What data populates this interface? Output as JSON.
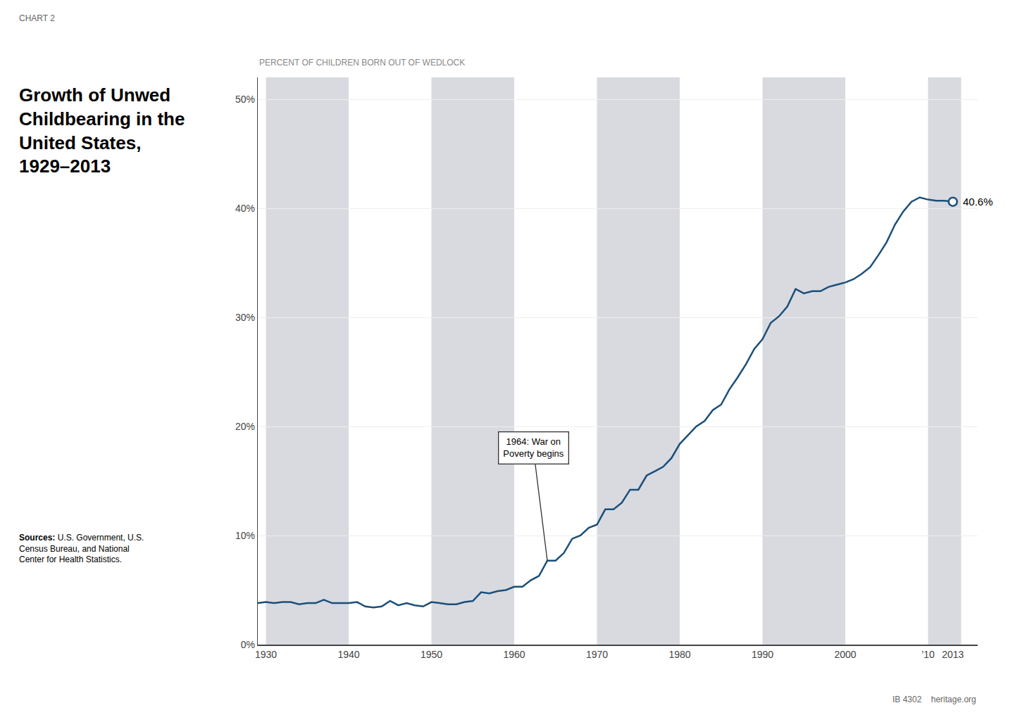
{
  "chart_data": {
    "type": "line",
    "chart_label": "CHART 2",
    "title": "Growth of Unwed\nChildbearing in the\nUnited States,\n1929–2013",
    "ylabel": "PERCENT OF CHILDREN BORN OUT OF WEDLOCK",
    "x": [
      1929,
      1930,
      1931,
      1932,
      1933,
      1934,
      1935,
      1936,
      1937,
      1938,
      1939,
      1940,
      1941,
      1942,
      1943,
      1944,
      1945,
      1946,
      1947,
      1948,
      1949,
      1950,
      1951,
      1952,
      1953,
      1954,
      1955,
      1956,
      1957,
      1958,
      1959,
      1960,
      1961,
      1962,
      1963,
      1964,
      1965,
      1966,
      1967,
      1968,
      1969,
      1970,
      1971,
      1972,
      1973,
      1974,
      1975,
      1976,
      1977,
      1978,
      1979,
      1980,
      1981,
      1982,
      1983,
      1984,
      1985,
      1986,
      1987,
      1988,
      1989,
      1990,
      1991,
      1992,
      1993,
      1994,
      1995,
      1996,
      1997,
      1998,
      1999,
      2000,
      2001,
      2002,
      2003,
      2004,
      2005,
      2006,
      2007,
      2008,
      2009,
      2010,
      2011,
      2012,
      2013
    ],
    "values": [
      3.8,
      3.9,
      3.8,
      3.9,
      3.9,
      3.7,
      3.8,
      3.8,
      4.1,
      3.8,
      3.8,
      3.8,
      3.9,
      3.5,
      3.4,
      3.5,
      4.0,
      3.6,
      3.8,
      3.6,
      3.5,
      3.9,
      3.8,
      3.7,
      3.7,
      3.9,
      4.0,
      4.8,
      4.7,
      4.9,
      5.0,
      5.3,
      5.3,
      5.9,
      6.3,
      7.7,
      7.7,
      8.4,
      9.7,
      10.0,
      10.7,
      11.0,
      12.4,
      12.4,
      13.0,
      14.2,
      14.2,
      15.5,
      15.9,
      16.3,
      17.1,
      18.4,
      19.2,
      20.0,
      20.5,
      21.5,
      22.0,
      23.4,
      24.5,
      25.7,
      27.1,
      28.0,
      29.5,
      30.1,
      31.0,
      32.6,
      32.2,
      32.4,
      32.4,
      32.8,
      33.0,
      33.2,
      33.5,
      34.0,
      34.6,
      35.7,
      36.9,
      38.5,
      39.7,
      40.6,
      41.0,
      40.8,
      40.7,
      40.7,
      40.6
    ],
    "color": "#1a4f7a",
    "xlim": [
      1929,
      2016
    ],
    "xticks": [
      1930,
      1940,
      1950,
      1960,
      1970,
      1980,
      1990,
      2000,
      {
        "value": 2010,
        "label": "’10"
      },
      2013
    ],
    "ylim": [
      0,
      52
    ],
    "yticks": [
      {
        "value": 0,
        "label": "0%"
      },
      {
        "value": 10,
        "label": "10%"
      },
      {
        "value": 20,
        "label": "20%"
      },
      {
        "value": 30,
        "label": "30%"
      },
      {
        "value": 40,
        "label": "40%"
      },
      {
        "value": 50,
        "label": "50%"
      }
    ],
    "grid": "y",
    "annotations": [
      {
        "text": "1964: War on\nPoverty begins",
        "x": 1964,
        "y": 7.7
      }
    ],
    "endpoint": {
      "x": 2013,
      "y": 40.6,
      "label": "40.6%"
    },
    "shaded_bands": [
      [
        1930,
        1940
      ],
      [
        1950,
        1960
      ],
      [
        1970,
        1980
      ],
      [
        1990,
        2000
      ],
      [
        2010,
        2014
      ]
    ],
    "band_color": "#d8dae0",
    "source_label": "Sources:",
    "source": "U.S. Government, U.S.\nCensus Bureau, and National\nCenter for Health Statistics.",
    "footer": "IB 4302    heritage.org"
  }
}
